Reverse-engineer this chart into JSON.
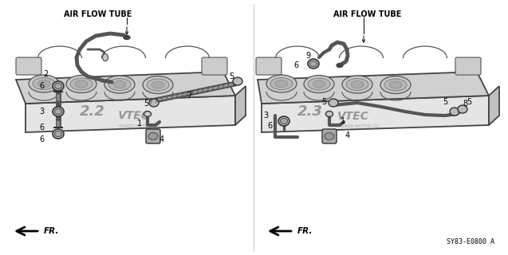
{
  "bg_color": "#ffffff",
  "left_label": "AIR FLOW TUBE",
  "right_label": "AIR FLOW TUBE",
  "diagram_code": "SY83-E0800 A",
  "figsize": [
    6.37,
    3.2
  ],
  "dpi": 100
}
